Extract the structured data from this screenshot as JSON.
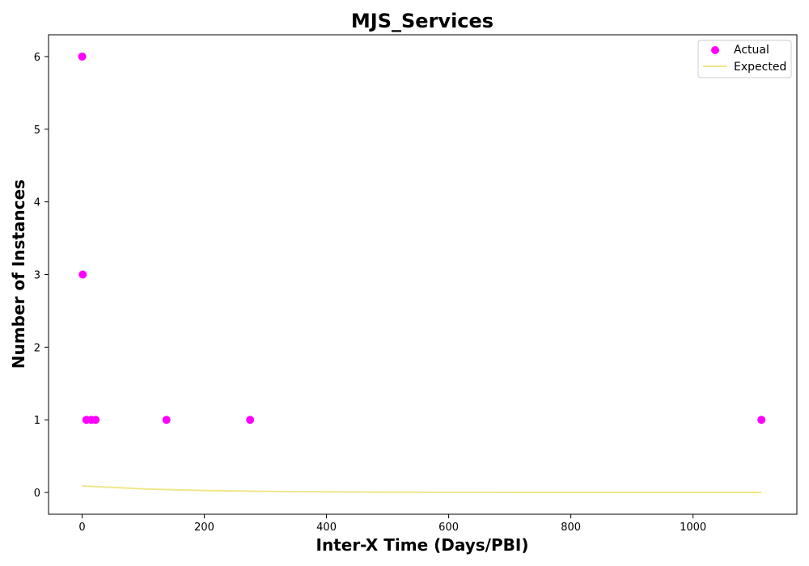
{
  "chart_data": {
    "type": "scatter",
    "title": "MJS_Services",
    "xlabel": "Inter-X Time (Days/PBI)",
    "ylabel": "Number of Instances",
    "xlim": [
      -55,
      1170
    ],
    "ylim": [
      -0.3,
      6.3
    ],
    "x_ticks": [
      0,
      200,
      400,
      600,
      800,
      1000
    ],
    "y_ticks": [
      0,
      1,
      2,
      3,
      4,
      5,
      6
    ],
    "grid": false,
    "legend_position": "top-right",
    "series": [
      {
        "name": "Actual",
        "kind": "scatter",
        "color": "#ff00ff",
        "points": [
          {
            "x": 0,
            "y": 6
          },
          {
            "x": 1,
            "y": 3
          },
          {
            "x": 7,
            "y": 1
          },
          {
            "x": 15,
            "y": 1
          },
          {
            "x": 22,
            "y": 1
          },
          {
            "x": 138,
            "y": 1
          },
          {
            "x": 275,
            "y": 1
          },
          {
            "x": 1112,
            "y": 1
          }
        ]
      },
      {
        "name": "Expected",
        "kind": "line",
        "color": "#f0e68c",
        "points": [
          {
            "x": 0,
            "y": 0.09
          },
          {
            "x": 50,
            "y": 0.07
          },
          {
            "x": 100,
            "y": 0.05
          },
          {
            "x": 150,
            "y": 0.037
          },
          {
            "x": 200,
            "y": 0.027
          },
          {
            "x": 300,
            "y": 0.014
          },
          {
            "x": 400,
            "y": 0.008
          },
          {
            "x": 500,
            "y": 0.004
          },
          {
            "x": 600,
            "y": 0.002
          },
          {
            "x": 800,
            "y": 0.0006
          },
          {
            "x": 1000,
            "y": 0.0002
          },
          {
            "x": 1112,
            "y": 0.0001
          }
        ]
      }
    ]
  }
}
